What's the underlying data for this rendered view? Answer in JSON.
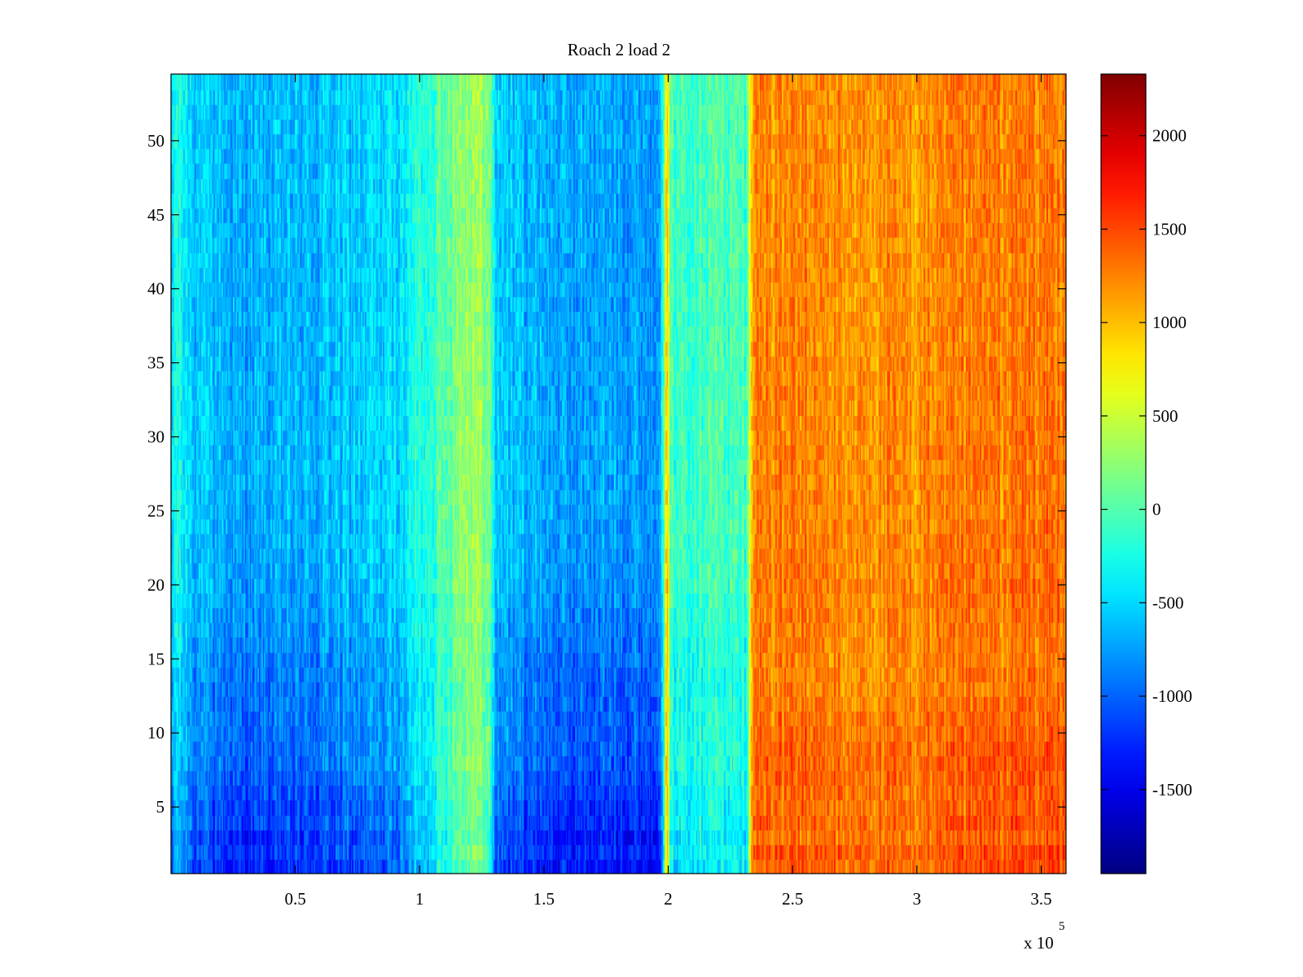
{
  "chart_data": {
    "type": "heatmap",
    "title": "Roach 2 load 2",
    "xlabel": "",
    "ylabel": "",
    "x_multiplier_label": "x 10",
    "x_multiplier_exponent": "5",
    "xlim": [
      0,
      360000
    ],
    "ylim": [
      0.5,
      54.5
    ],
    "rows": 54,
    "x_ticks": [
      {
        "value": 50000,
        "label": "0.5"
      },
      {
        "value": 100000,
        "label": "1"
      },
      {
        "value": 150000,
        "label": "1.5"
      },
      {
        "value": 200000,
        "label": "2"
      },
      {
        "value": 250000,
        "label": "2.5"
      },
      {
        "value": 300000,
        "label": "3"
      },
      {
        "value": 350000,
        "label": "3.5"
      }
    ],
    "y_ticks": [
      {
        "value": 5,
        "label": "5"
      },
      {
        "value": 10,
        "label": "10"
      },
      {
        "value": 15,
        "label": "15"
      },
      {
        "value": 20,
        "label": "20"
      },
      {
        "value": 25,
        "label": "25"
      },
      {
        "value": 30,
        "label": "30"
      },
      {
        "value": 35,
        "label": "35"
      },
      {
        "value": 40,
        "label": "40"
      },
      {
        "value": 45,
        "label": "45"
      },
      {
        "value": 50,
        "label": "50"
      }
    ],
    "colorbar": {
      "colormap": "jet",
      "min": -1950,
      "max": 2330,
      "ticks": [
        {
          "value": -1500,
          "label": "-1500"
        },
        {
          "value": -1000,
          "label": "-1000"
        },
        {
          "value": -500,
          "label": "-500"
        },
        {
          "value": 0,
          "label": "0"
        },
        {
          "value": 500,
          "label": "500"
        },
        {
          "value": 1000,
          "label": "1000"
        },
        {
          "value": 1500,
          "label": "1500"
        },
        {
          "value": 2000,
          "label": "2000"
        }
      ]
    },
    "column_profile": [
      {
        "x": 0,
        "value": -700
      },
      {
        "x": 2000,
        "value": -300
      },
      {
        "x": 10000,
        "value": -650
      },
      {
        "x": 30000,
        "value": -800
      },
      {
        "x": 60000,
        "value": -720
      },
      {
        "x": 90000,
        "value": -560
      },
      {
        "x": 105000,
        "value": -150
      },
      {
        "x": 115000,
        "value": 180
      },
      {
        "x": 122000,
        "value": 330
      },
      {
        "x": 128000,
        "value": 120
      },
      {
        "x": 131000,
        "value": -620
      },
      {
        "x": 160000,
        "value": -820
      },
      {
        "x": 195000,
        "value": -800
      },
      {
        "x": 198000,
        "value": -500
      },
      {
        "x": 199500,
        "value": 1200
      },
      {
        "x": 201000,
        "value": -150
      },
      {
        "x": 215000,
        "value": -50
      },
      {
        "x": 232000,
        "value": -150
      },
      {
        "x": 234000,
        "value": 1250
      },
      {
        "x": 260000,
        "value": 1200
      },
      {
        "x": 300000,
        "value": 1180
      },
      {
        "x": 340000,
        "value": 1280
      },
      {
        "x": 360000,
        "value": 1300
      }
    ],
    "row_profile": [
      {
        "row": 1,
        "value": -200
      },
      {
        "row": 2,
        "value": -120
      },
      {
        "row": 3,
        "value": -220
      },
      {
        "row": 4,
        "value": -120
      },
      {
        "row": 5,
        "value": -160
      },
      {
        "row": 8,
        "value": -40
      },
      {
        "row": 11,
        "value": -60
      },
      {
        "row": 13,
        "value": -100
      },
      {
        "row": 20,
        "value": 30
      },
      {
        "row": 30,
        "value": 50
      },
      {
        "row": 40,
        "value": 30
      },
      {
        "row": 54,
        "value": 60
      }
    ],
    "row_contrast": [
      {
        "row": 1,
        "factor": 1.6
      },
      {
        "row": 6,
        "factor": 1.4
      },
      {
        "row": 14,
        "factor": 1.15
      },
      {
        "row": 25,
        "factor": 0.95
      },
      {
        "row": 54,
        "factor": 0.9
      }
    ],
    "noise_amplitude": 300
  }
}
